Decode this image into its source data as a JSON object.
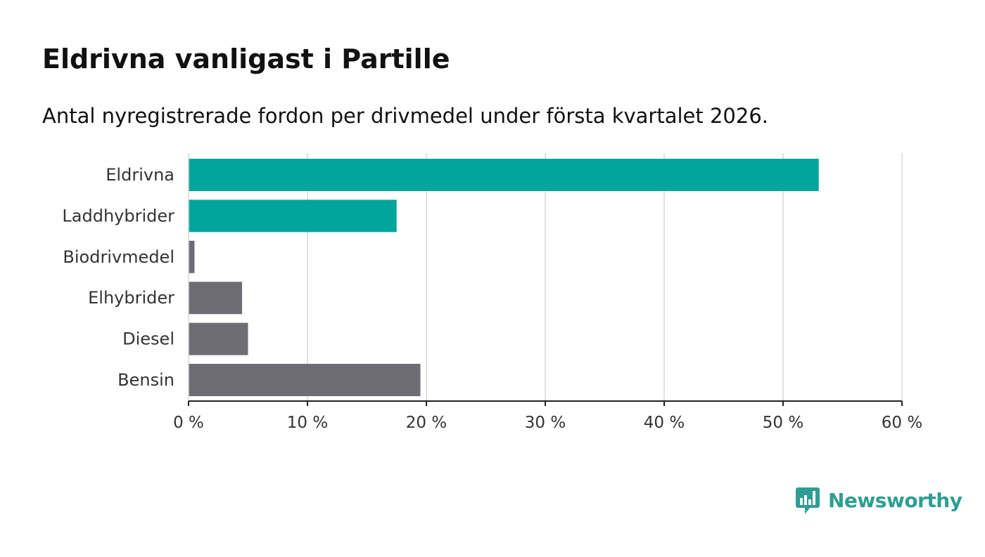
{
  "header": {
    "title": "Eldrivna vanligast i Partille",
    "subtitle": "Antal nyregistrerade fordon per drivmedel under första kvartalet 2026."
  },
  "brand": {
    "name": "Newsworthy",
    "icon": "bar-chart-speech-bubble-icon",
    "color": "#2e9e93"
  },
  "chart_data": {
    "type": "bar",
    "orientation": "horizontal",
    "title": "Eldrivna vanligast i Partille",
    "subtitle": "Antal nyregistrerade fordon per drivmedel under första kvartalet 2026.",
    "categories": [
      "Eldrivna",
      "Laddhybrider",
      "Biodrivmedel",
      "Elhybrider",
      "Diesel",
      "Bensin"
    ],
    "values": [
      53,
      17.5,
      0.5,
      4.5,
      5,
      19.5
    ],
    "unit": "%",
    "xlim": [
      0,
      60
    ],
    "ticks": [
      0,
      10,
      20,
      30,
      40,
      50,
      60
    ],
    "tick_labels": [
      "0 %",
      "10 %",
      "20 %",
      "30 %",
      "40 %",
      "50 %",
      "60 %"
    ],
    "grid": true,
    "xlabel": "",
    "ylabel": "",
    "colors": {
      "highlight": "#00a59b",
      "default": "#6e6d74",
      "grid": "#d9d9d9",
      "axis": "#222222"
    },
    "highlighted": [
      "Eldrivna",
      "Laddhybrider"
    ]
  }
}
